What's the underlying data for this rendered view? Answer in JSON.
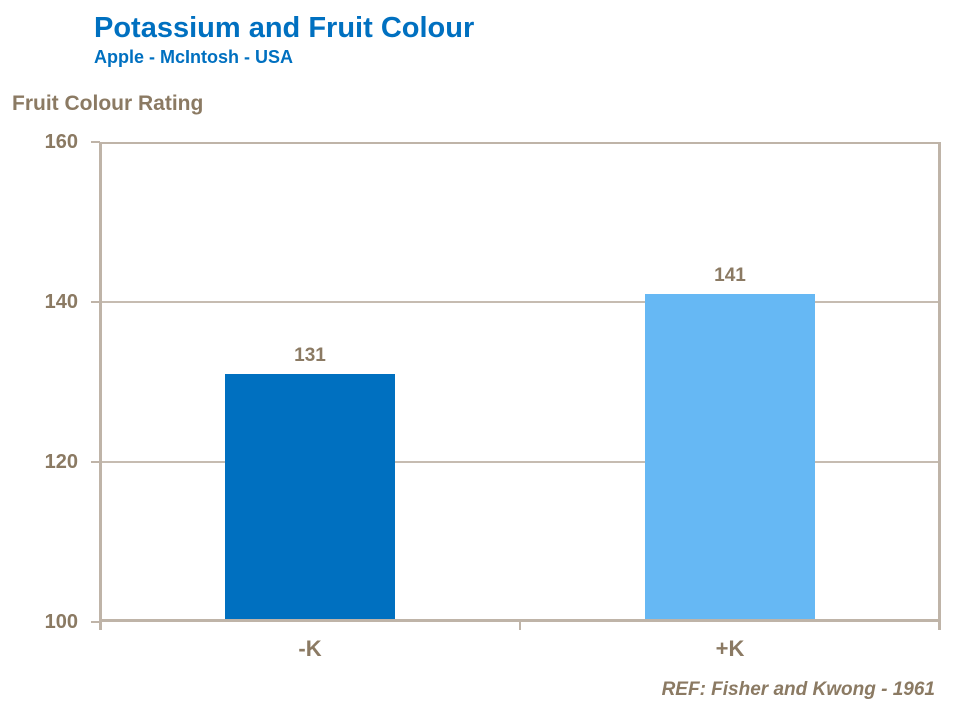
{
  "header": {
    "title": "Potassium and Fruit Colour",
    "subtitle": "Apple - McIntosh - USA"
  },
  "footer": {
    "ref": "REF: Fisher and Kwong - 1961"
  },
  "colors": {
    "title_blue": "#0070C0",
    "text_brown": "#8B7A63",
    "axis_line": "#BFB4A8",
    "gridline": "#C6BCB1"
  },
  "chart_data": {
    "type": "bar",
    "title": "Potassium and Fruit Colour",
    "subtitle": "Apple - McIntosh - USA",
    "ylabel": "Fruit Colour Rating",
    "xlabel": "",
    "categories": [
      "-K",
      "+K"
    ],
    "values": [
      131,
      141
    ],
    "data_labels": [
      "131",
      "141"
    ],
    "bar_colors": [
      "#0070C0",
      "#66B8F4"
    ],
    "ylim": [
      100,
      160
    ],
    "yticks": [
      100,
      120,
      140,
      160
    ],
    "grid": true,
    "legend": "none",
    "reference": "REF: Fisher and Kwong - 1961"
  }
}
